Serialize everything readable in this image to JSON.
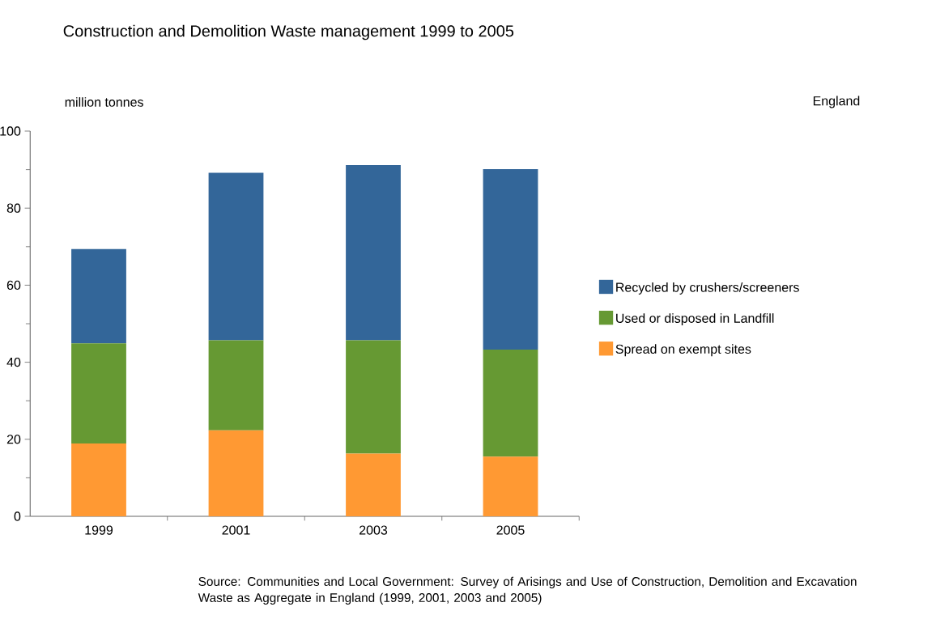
{
  "chart_data": {
    "type": "bar",
    "stacked": true,
    "title": "Construction and Demolition Waste management 1999 to 2005",
    "ylabel": "million tonnes",
    "categories": [
      "1999",
      "2001",
      "2003",
      "2005"
    ],
    "series": [
      {
        "name": "Spread on exempt sites",
        "color": "#ff9933",
        "values": [
          18.9,
          22.3,
          16.3,
          15.5
        ]
      },
      {
        "name": "Used or disposed in Landfill",
        "color": "#669933",
        "values": [
          26.0,
          23.4,
          29.4,
          27.8
        ]
      },
      {
        "name": "Recycled by crushers/screeners",
        "color": "#336699",
        "values": [
          24.5,
          43.5,
          45.5,
          46.8
        ]
      }
    ],
    "ylim": [
      0,
      100
    ],
    "yticks": [
      0,
      20,
      40,
      60,
      80,
      100
    ],
    "legend": "right",
    "grid": false,
    "annotations": [
      "England",
      "Source: Communities and Local Government: Survey of Arisings and Use of Construction, Demolition and Excavation Waste as Aggregate in England (1999, 2001, 2003 and 2005)"
    ]
  }
}
